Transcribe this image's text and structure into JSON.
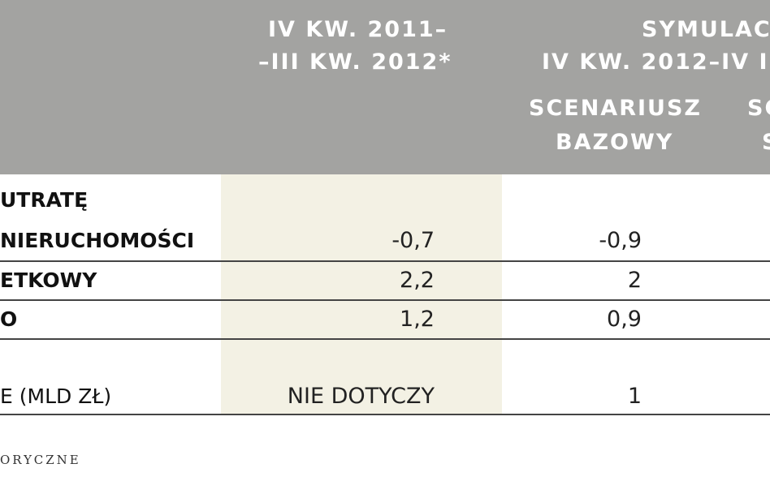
{
  "header": {
    "columns": [
      {
        "lines": [
          "IV KW. 2011–",
          "–III KW. 2012*"
        ]
      },
      {
        "lines": [
          "SYMULACJ",
          "IV KW. 2012–IV I"
        ]
      },
      {
        "lines": [
          "SCENARIUSZ",
          "BAZOWY"
        ]
      },
      {
        "lines": [
          "SC",
          "S"
        ]
      }
    ]
  },
  "table": {
    "rows": [
      [
        [
          "UTRATĘ",
          "NIERUCHOMOŚCI"
        ],
        "-0,7",
        "-0,9"
      ],
      [
        [
          "ETKOWY"
        ],
        "2,2",
        "2"
      ],
      [
        [
          "O"
        ],
        "1,2",
        "0,9"
      ],
      [
        [
          "E (MLD ZŁ)"
        ],
        "NIE DOTYCZY",
        "1"
      ]
    ]
  },
  "footer": {
    "text": "ORYCZNE"
  }
}
